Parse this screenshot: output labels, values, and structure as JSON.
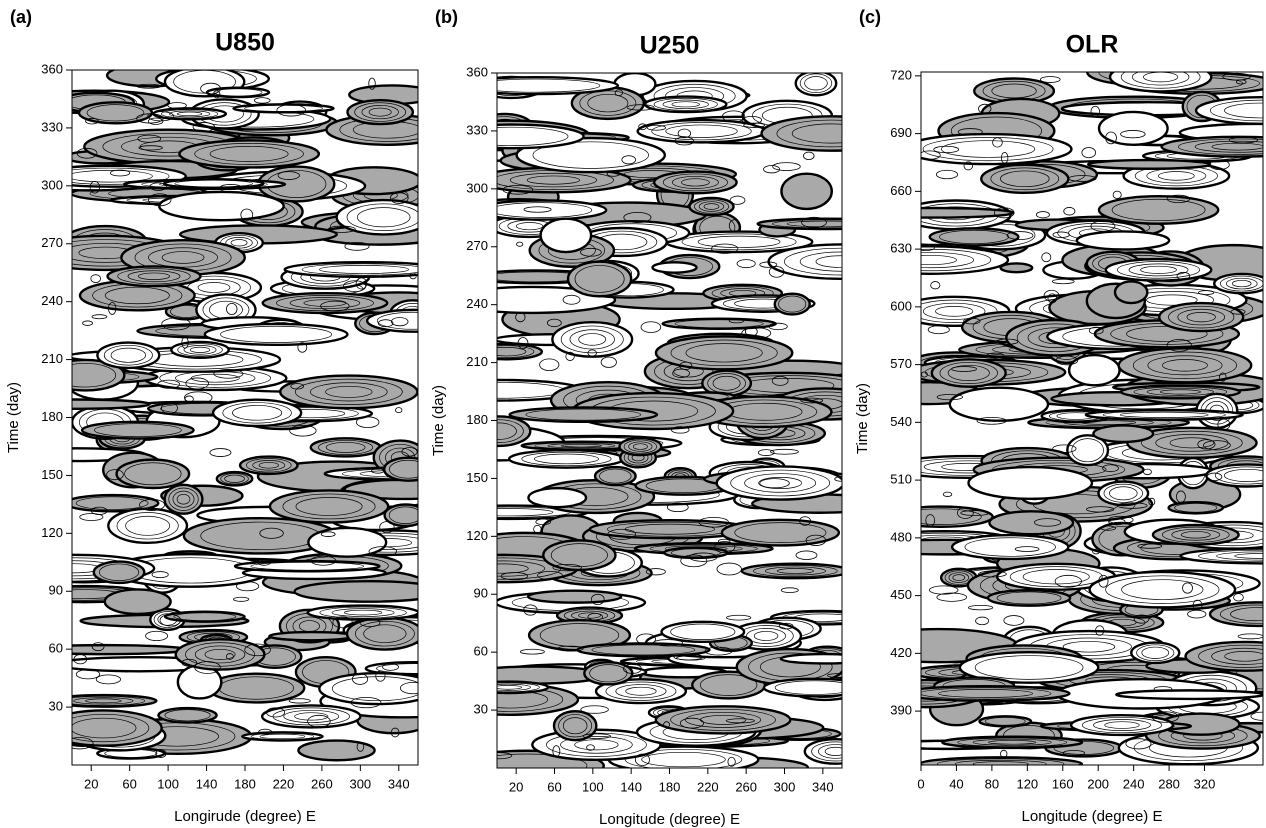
{
  "chart_data": [
    {
      "type": "contour",
      "panel": "(a)",
      "title": "U850",
      "x_label": "Longirude (degree) E",
      "y_label": "Time (day)",
      "xlim": [
        0,
        360
      ],
      "ylim": [
        0,
        360
      ],
      "xticks": [
        20,
        60,
        100,
        140,
        180,
        220,
        260,
        300,
        340
      ],
      "yticks": [
        30,
        60,
        90,
        120,
        150,
        180,
        210,
        240,
        270,
        300,
        330,
        360
      ]
    },
    {
      "type": "contour",
      "panel": "(b)",
      "title": "U250",
      "x_label": "Longitude (degree) E",
      "y_label": "Time (day)",
      "xlim": [
        0,
        360
      ],
      "ylim": [
        0,
        360
      ],
      "xticks": [
        20,
        60,
        100,
        140,
        180,
        220,
        260,
        300,
        340
      ],
      "yticks": [
        30,
        60,
        90,
        120,
        150,
        180,
        210,
        240,
        270,
        300,
        330,
        360
      ]
    },
    {
      "type": "contour",
      "panel": "(c)",
      "title": "OLR",
      "x_label": "Longitude (degree) E",
      "y_label": "Time (day)",
      "xlim": [
        0,
        386
      ],
      "ylim": [
        362,
        722
      ],
      "xticks": [
        0,
        40,
        80,
        120,
        160,
        200,
        240,
        280,
        320
      ],
      "yticks": [
        390,
        420,
        450,
        480,
        510,
        540,
        570,
        600,
        630,
        660,
        690,
        720
      ]
    }
  ]
}
